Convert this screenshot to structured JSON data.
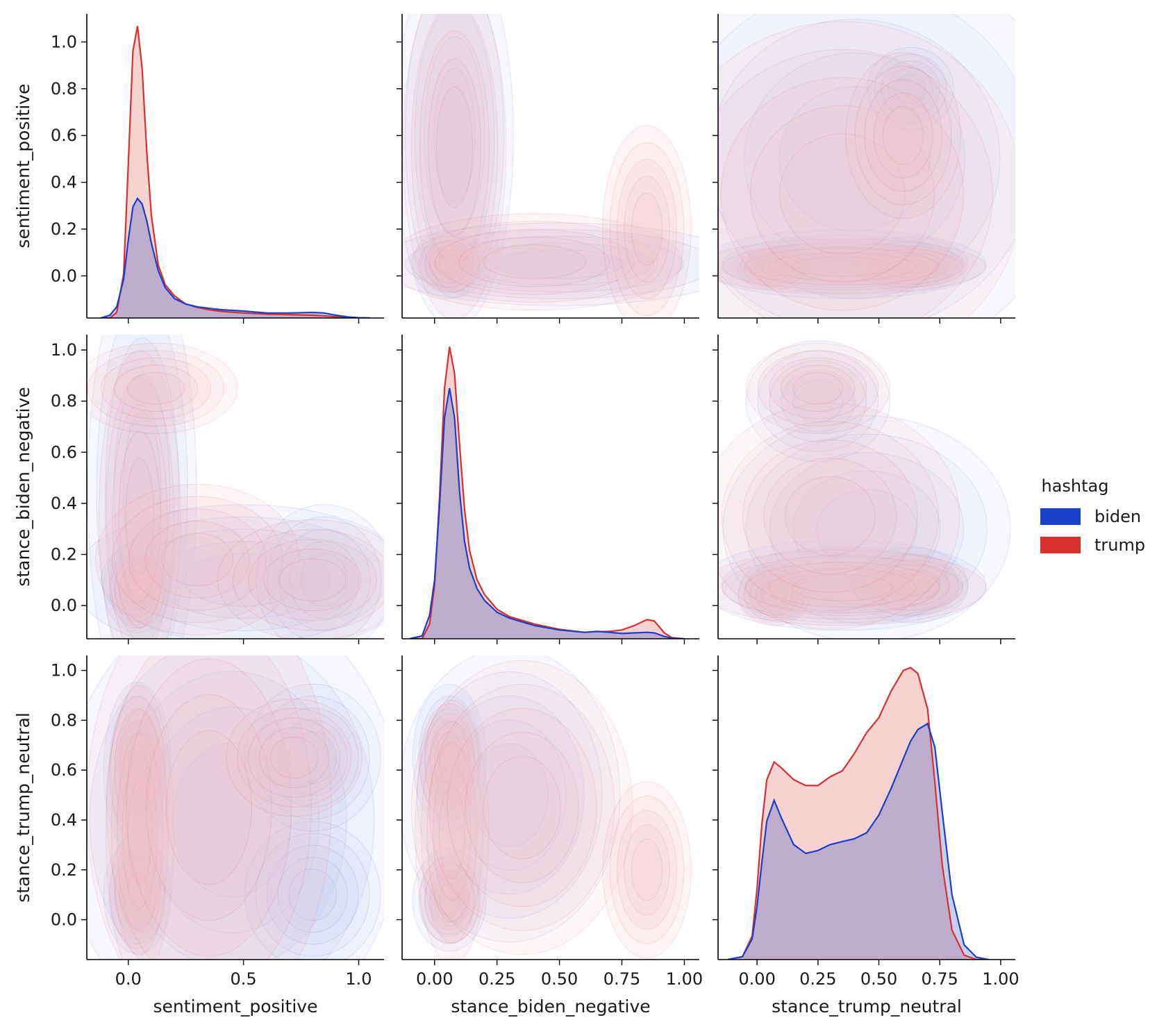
{
  "chart_data": {
    "type": "pairplot-kde",
    "variables": [
      "sentiment_positive",
      "stance_biden_negative",
      "stance_trump_neutral"
    ],
    "hue": {
      "title": "hashtag",
      "levels": [
        {
          "name": "biden",
          "color": "#1a3fc8",
          "fill": "#c7cdf2"
        },
        {
          "name": "trump",
          "color": "#d8302c",
          "fill": "#f1c3c8"
        }
      ]
    },
    "axes": {
      "sentiment_positive": {
        "label": "sentiment_positive",
        "lim": [
          -0.18,
          1.11
        ],
        "ticks": [
          {
            "v": 0.0,
            "t": "0.0"
          },
          {
            "v": 0.5,
            "t": "0.5"
          },
          {
            "v": 1.0,
            "t": "1.0"
          }
        ],
        "ylim": [
          -0.18,
          1.12
        ],
        "yticks": [
          {
            "v": 0.0,
            "t": "0.0"
          },
          {
            "v": 0.2,
            "t": "0.2"
          },
          {
            "v": 0.4,
            "t": "0.4"
          },
          {
            "v": 0.6,
            "t": "0.6"
          },
          {
            "v": 0.8,
            "t": "0.8"
          },
          {
            "v": 1.0,
            "t": "1.0"
          }
        ]
      },
      "stance_biden_negative": {
        "label": "stance_biden_negative",
        "lim": [
          -0.13,
          1.06
        ],
        "ticks": [
          {
            "v": 0.0,
            "t": "0.00"
          },
          {
            "v": 0.25,
            "t": "0.25"
          },
          {
            "v": 0.5,
            "t": "0.50"
          },
          {
            "v": 0.75,
            "t": "0.75"
          },
          {
            "v": 1.0,
            "t": "1.00"
          }
        ],
        "ylim": [
          -0.13,
          1.06
        ],
        "yticks": [
          {
            "v": 0.0,
            "t": "0.0"
          },
          {
            "v": 0.2,
            "t": "0.2"
          },
          {
            "v": 0.4,
            "t": "0.4"
          },
          {
            "v": 0.6,
            "t": "0.6"
          },
          {
            "v": 0.8,
            "t": "0.8"
          },
          {
            "v": 1.0,
            "t": "1.0"
          }
        ]
      },
      "stance_trump_neutral": {
        "label": "stance_trump_neutral",
        "lim": [
          -0.16,
          1.06
        ],
        "ticks": [
          {
            "v": 0.0,
            "t": "0.00"
          },
          {
            "v": 0.25,
            "t": "0.25"
          },
          {
            "v": 0.5,
            "t": "0.50"
          },
          {
            "v": 0.75,
            "t": "0.75"
          },
          {
            "v": 1.0,
            "t": "1.00"
          }
        ],
        "ylim": [
          -0.16,
          1.06
        ],
        "yticks": [
          {
            "v": 0.0,
            "t": "0.0"
          },
          {
            "v": 0.2,
            "t": "0.2"
          },
          {
            "v": 0.4,
            "t": "0.4"
          },
          {
            "v": 0.6,
            "t": "0.6"
          },
          {
            "v": 0.8,
            "t": "0.8"
          },
          {
            "v": 1.0,
            "t": "1.0"
          }
        ]
      }
    },
    "diagonal_kde": {
      "sentiment_positive": {
        "x": [
          -0.12,
          -0.08,
          -0.05,
          -0.02,
          0.0,
          0.02,
          0.04,
          0.06,
          0.08,
          0.1,
          0.13,
          0.16,
          0.2,
          0.25,
          0.3,
          0.35,
          0.4,
          0.5,
          0.6,
          0.7,
          0.8,
          0.85,
          0.9,
          0.95,
          1.0,
          1.05
        ],
        "biden": [
          0.0,
          0.01,
          0.04,
          0.14,
          0.28,
          0.4,
          0.43,
          0.41,
          0.35,
          0.27,
          0.17,
          0.11,
          0.07,
          0.05,
          0.04,
          0.035,
          0.03,
          0.025,
          0.018,
          0.018,
          0.02,
          0.018,
          0.01,
          0.004,
          0.001,
          0.0
        ],
        "trump": [
          0.0,
          0.0,
          0.02,
          0.16,
          0.55,
          0.96,
          1.05,
          0.9,
          0.6,
          0.37,
          0.19,
          0.12,
          0.08,
          0.05,
          0.038,
          0.03,
          0.024,
          0.018,
          0.014,
          0.012,
          0.01,
          0.008,
          0.004,
          0.001,
          0.0,
          0.0
        ]
      },
      "stance_biden_negative": {
        "x": [
          -0.1,
          -0.05,
          -0.02,
          0.0,
          0.02,
          0.04,
          0.06,
          0.08,
          0.1,
          0.12,
          0.14,
          0.17,
          0.2,
          0.25,
          0.3,
          0.4,
          0.5,
          0.6,
          0.65,
          0.7,
          0.75,
          0.8,
          0.85,
          0.88,
          0.92,
          0.95,
          1.0
        ],
        "biden": [
          0.0,
          0.01,
          0.08,
          0.2,
          0.45,
          0.75,
          0.85,
          0.75,
          0.5,
          0.33,
          0.24,
          0.17,
          0.13,
          0.09,
          0.07,
          0.045,
          0.03,
          0.022,
          0.025,
          0.022,
          0.018,
          0.02,
          0.022,
          0.02,
          0.008,
          0.002,
          0.0
        ],
        "trump": [
          0.0,
          0.0,
          0.05,
          0.18,
          0.48,
          0.85,
          0.99,
          0.9,
          0.66,
          0.44,
          0.3,
          0.2,
          0.15,
          0.1,
          0.075,
          0.05,
          0.032,
          0.022,
          0.024,
          0.025,
          0.03,
          0.045,
          0.065,
          0.06,
          0.02,
          0.004,
          0.0
        ]
      },
      "stance_trump_neutral": {
        "x": [
          -0.12,
          -0.06,
          -0.02,
          0.0,
          0.02,
          0.04,
          0.07,
          0.1,
          0.15,
          0.2,
          0.25,
          0.3,
          0.35,
          0.4,
          0.45,
          0.5,
          0.55,
          0.6,
          0.63,
          0.66,
          0.7,
          0.73,
          0.76,
          0.8,
          0.85,
          0.9,
          0.95
        ],
        "biden": [
          0.0,
          0.01,
          0.07,
          0.18,
          0.33,
          0.47,
          0.54,
          0.48,
          0.39,
          0.36,
          0.37,
          0.39,
          0.4,
          0.41,
          0.43,
          0.49,
          0.58,
          0.68,
          0.74,
          0.78,
          0.8,
          0.72,
          0.5,
          0.22,
          0.05,
          0.008,
          0.0
        ],
        "trump": [
          0.0,
          0.01,
          0.08,
          0.24,
          0.46,
          0.61,
          0.67,
          0.65,
          0.61,
          0.59,
          0.59,
          0.62,
          0.64,
          0.7,
          0.77,
          0.82,
          0.91,
          0.98,
          0.99,
          0.97,
          0.85,
          0.6,
          0.32,
          0.1,
          0.015,
          0.0,
          0.0
        ]
      }
    },
    "offdiag_kde": {
      "sentiment_positive|stance_biden_negative": {
        "trump": [
          {
            "x": 0.04,
            "y": 0.06,
            "sx": 0.04,
            "sy": 0.05,
            "w": 1.0
          },
          {
            "x": 0.05,
            "y": 0.35,
            "sx": 0.06,
            "sy": 0.22,
            "w": 0.35
          },
          {
            "x": 0.12,
            "y": 0.85,
            "sx": 0.12,
            "sy": 0.06,
            "w": 0.15
          },
          {
            "x": 0.3,
            "y": 0.18,
            "sx": 0.15,
            "sy": 0.1,
            "w": 0.25
          },
          {
            "x": 0.8,
            "y": 0.1,
            "sx": 0.14,
            "sy": 0.08,
            "w": 0.2
          }
        ],
        "biden": [
          {
            "x": 0.04,
            "y": 0.07,
            "sx": 0.05,
            "sy": 0.06,
            "w": 1.0
          },
          {
            "x": 0.06,
            "y": 0.45,
            "sx": 0.08,
            "sy": 0.3,
            "w": 0.25
          },
          {
            "x": 0.5,
            "y": 0.1,
            "sx": 0.25,
            "sy": 0.1,
            "w": 0.3
          },
          {
            "x": 0.85,
            "y": 0.1,
            "sx": 0.1,
            "sy": 0.1,
            "w": 0.2
          }
        ]
      },
      "sentiment_positive|stance_trump_neutral": {
        "trump": [
          {
            "x": 0.04,
            "y": 0.6,
            "sx": 0.04,
            "sy": 0.1,
            "w": 1.0
          },
          {
            "x": 0.04,
            "y": 0.12,
            "sx": 0.04,
            "sy": 0.08,
            "w": 0.8
          },
          {
            "x": 0.05,
            "y": 0.35,
            "sx": 0.05,
            "sy": 0.2,
            "w": 0.6
          },
          {
            "x": 0.35,
            "y": 0.45,
            "sx": 0.18,
            "sy": 0.3,
            "w": 0.25
          },
          {
            "x": 0.72,
            "y": 0.65,
            "sx": 0.1,
            "sy": 0.08,
            "w": 0.15
          }
        ],
        "biden": [
          {
            "x": 0.04,
            "y": 0.6,
            "sx": 0.05,
            "sy": 0.12,
            "w": 1.0
          },
          {
            "x": 0.04,
            "y": 0.1,
            "sx": 0.05,
            "sy": 0.08,
            "w": 0.8
          },
          {
            "x": 0.45,
            "y": 0.4,
            "sx": 0.25,
            "sy": 0.3,
            "w": 0.25
          },
          {
            "x": 0.8,
            "y": 0.1,
            "sx": 0.1,
            "sy": 0.1,
            "w": 0.15
          },
          {
            "x": 0.8,
            "y": 0.65,
            "sx": 0.1,
            "sy": 0.1,
            "w": 0.12
          }
        ]
      },
      "stance_biden_negative|sentiment_positive": {
        "trump": [
          {
            "x": 0.06,
            "y": 0.05,
            "sx": 0.04,
            "sy": 0.04,
            "w": 1.0
          },
          {
            "x": 0.08,
            "y": 0.55,
            "sx": 0.07,
            "sy": 0.25,
            "w": 0.3
          },
          {
            "x": 0.4,
            "y": 0.06,
            "sx": 0.2,
            "sy": 0.07,
            "w": 0.3
          },
          {
            "x": 0.85,
            "y": 0.2,
            "sx": 0.06,
            "sy": 0.15,
            "w": 0.25
          }
        ],
        "biden": [
          {
            "x": 0.06,
            "y": 0.05,
            "sx": 0.05,
            "sy": 0.05,
            "w": 1.0
          },
          {
            "x": 0.08,
            "y": 0.6,
            "sx": 0.08,
            "sy": 0.28,
            "w": 0.3
          },
          {
            "x": 0.5,
            "y": 0.05,
            "sx": 0.25,
            "sy": 0.06,
            "w": 0.3
          }
        ]
      },
      "stance_biden_negative|stance_trump_neutral": {
        "trump": [
          {
            "x": 0.06,
            "y": 0.63,
            "sx": 0.04,
            "sy": 0.08,
            "w": 1.0
          },
          {
            "x": 0.06,
            "y": 0.08,
            "sx": 0.04,
            "sy": 0.06,
            "w": 0.6
          },
          {
            "x": 0.07,
            "y": 0.35,
            "sx": 0.05,
            "sy": 0.18,
            "w": 0.5
          },
          {
            "x": 0.35,
            "y": 0.45,
            "sx": 0.15,
            "sy": 0.2,
            "w": 0.2
          },
          {
            "x": 0.85,
            "y": 0.2,
            "sx": 0.06,
            "sy": 0.12,
            "w": 0.3
          }
        ],
        "biden": [
          {
            "x": 0.06,
            "y": 0.65,
            "sx": 0.05,
            "sy": 0.1,
            "w": 1.0
          },
          {
            "x": 0.06,
            "y": 0.08,
            "sx": 0.05,
            "sy": 0.07,
            "w": 0.6
          },
          {
            "x": 0.3,
            "y": 0.5,
            "sx": 0.15,
            "sy": 0.2,
            "w": 0.2
          }
        ]
      },
      "stance_trump_neutral|sentiment_positive": {
        "trump": [
          {
            "x": 0.07,
            "y": 0.03,
            "sx": 0.05,
            "sy": 0.03,
            "w": 0.9
          },
          {
            "x": 0.62,
            "y": 0.04,
            "sx": 0.08,
            "sy": 0.03,
            "w": 1.0
          },
          {
            "x": 0.35,
            "y": 0.04,
            "sx": 0.2,
            "sy": 0.04,
            "w": 0.6
          },
          {
            "x": 0.35,
            "y": 0.35,
            "sx": 0.25,
            "sy": 0.25,
            "w": 0.12
          },
          {
            "x": 0.6,
            "y": 0.6,
            "sx": 0.08,
            "sy": 0.12,
            "w": 0.1
          }
        ],
        "biden": [
          {
            "x": 0.08,
            "y": 0.04,
            "sx": 0.06,
            "sy": 0.03,
            "w": 0.9
          },
          {
            "x": 0.63,
            "y": 0.05,
            "sx": 0.08,
            "sy": 0.04,
            "w": 1.0
          },
          {
            "x": 0.35,
            "y": 0.05,
            "sx": 0.2,
            "sy": 0.05,
            "w": 0.6
          },
          {
            "x": 0.4,
            "y": 0.5,
            "sx": 0.3,
            "sy": 0.3,
            "w": 0.12
          },
          {
            "x": 0.63,
            "y": 0.8,
            "sx": 0.06,
            "sy": 0.06,
            "w": 0.08
          }
        ]
      },
      "stance_trump_neutral|stance_biden_negative": {
        "trump": [
          {
            "x": 0.07,
            "y": 0.04,
            "sx": 0.05,
            "sy": 0.04,
            "w": 0.8
          },
          {
            "x": 0.63,
            "y": 0.08,
            "sx": 0.08,
            "sy": 0.04,
            "w": 1.0
          },
          {
            "x": 0.35,
            "y": 0.07,
            "sx": 0.2,
            "sy": 0.05,
            "w": 0.6
          },
          {
            "x": 0.3,
            "y": 0.35,
            "sx": 0.18,
            "sy": 0.15,
            "w": 0.15
          },
          {
            "x": 0.25,
            "y": 0.85,
            "sx": 0.1,
            "sy": 0.06,
            "w": 0.25
          }
        ],
        "biden": [
          {
            "x": 0.07,
            "y": 0.05,
            "sx": 0.05,
            "sy": 0.04,
            "w": 0.8
          },
          {
            "x": 0.63,
            "y": 0.08,
            "sx": 0.08,
            "sy": 0.05,
            "w": 1.0
          },
          {
            "x": 0.35,
            "y": 0.08,
            "sx": 0.2,
            "sy": 0.06,
            "w": 0.6
          },
          {
            "x": 0.45,
            "y": 0.3,
            "sx": 0.2,
            "sy": 0.15,
            "w": 0.15
          },
          {
            "x": 0.25,
            "y": 0.8,
            "sx": 0.1,
            "sy": 0.08,
            "w": 0.15
          }
        ]
      }
    }
  }
}
